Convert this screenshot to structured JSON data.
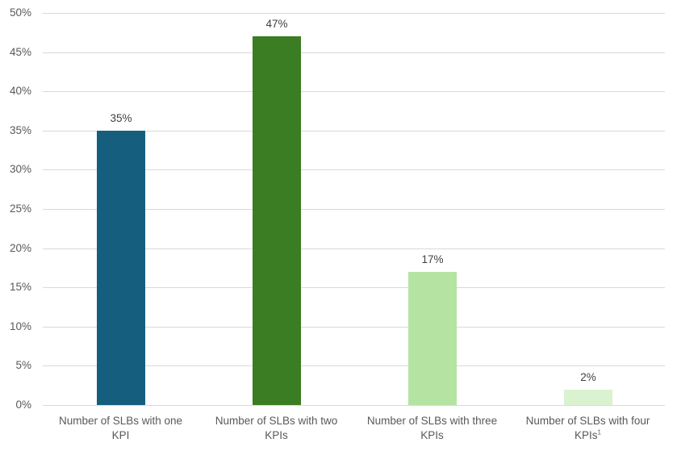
{
  "chart_data": {
    "type": "bar",
    "title": "",
    "xlabel": "",
    "ylabel": "",
    "categories": [
      "Number of SLBs with one KPI",
      "Number of SLBs with two KPIs",
      "Number of SLBs with three KPIs",
      "Number of SLBs with four KPIs¹"
    ],
    "values": [
      35,
      47,
      17,
      2
    ],
    "value_labels": [
      "35%",
      "47%",
      "17%",
      "2%"
    ],
    "bar_colors": [
      "#155e7e",
      "#3a7d22",
      "#b4e3a2",
      "#d9f2d0"
    ],
    "ylim": [
      0,
      50
    ],
    "yticks": [
      "0%",
      "5%",
      "10%",
      "15%",
      "20%",
      "25%",
      "30%",
      "35%",
      "40%",
      "45%",
      "50%"
    ],
    "grid": true,
    "legend": null
  },
  "axis": {
    "yticks": [
      "0%",
      "5%",
      "10%",
      "15%",
      "20%",
      "25%",
      "30%",
      "35%",
      "40%",
      "45%",
      "50%"
    ]
  },
  "bars": [
    {
      "line1": "Number of SLBs with one",
      "line2": "KPI",
      "footnote": "",
      "label": "35%",
      "value": 35,
      "color": "#155e7e"
    },
    {
      "line1": "Number of SLBs with two",
      "line2": "KPIs",
      "footnote": "",
      "label": "47%",
      "value": 47,
      "color": "#3a7d22"
    },
    {
      "line1": "Number of SLBs with three",
      "line2": "KPIs",
      "footnote": "",
      "label": "17%",
      "value": 17,
      "color": "#b4e3a2"
    },
    {
      "line1": "Number of SLBs with four",
      "line2": "KPIs",
      "footnote": "1",
      "label": "2%",
      "value": 2,
      "color": "#d9f2d0"
    }
  ]
}
